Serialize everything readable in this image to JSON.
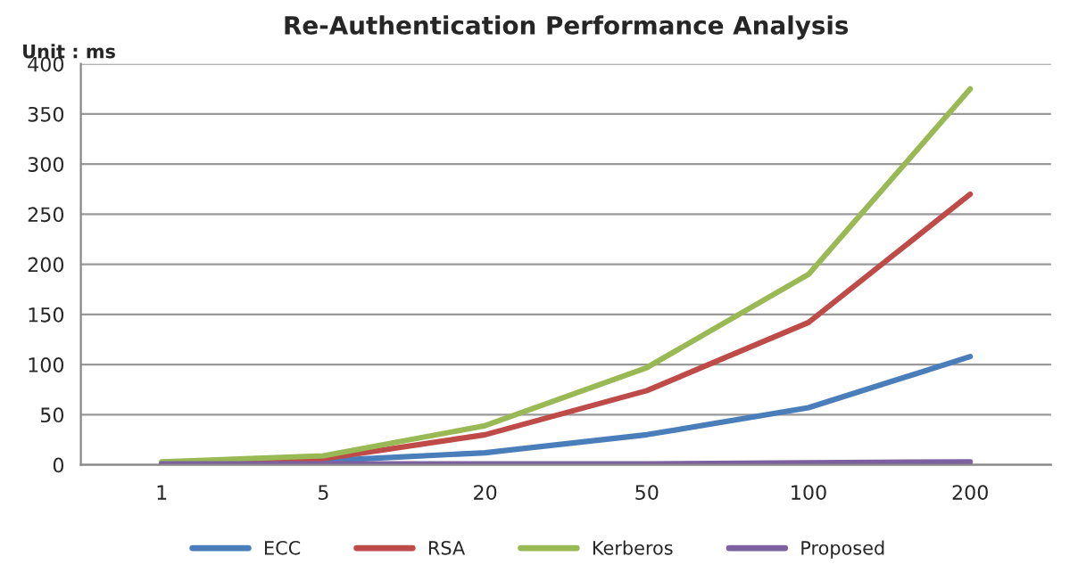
{
  "chart_data": {
    "type": "line",
    "title": "Re-Authentication Performance Analysis",
    "annotations": [
      "Unit : ms"
    ],
    "categories": [
      "1",
      "5",
      "20",
      "50",
      "100",
      "200"
    ],
    "series": [
      {
        "name": "ECC",
        "color": "#4a7ebb",
        "values": [
          2,
          4,
          12,
          30,
          57,
          108
        ]
      },
      {
        "name": "RSA",
        "color": "#be4b48",
        "values": [
          2,
          6,
          30,
          74,
          142,
          270
        ]
      },
      {
        "name": "Kerberos",
        "color": "#98b954",
        "values": [
          3,
          9,
          39,
          97,
          190,
          375
        ]
      },
      {
        "name": "Proposed",
        "color": "#7d60a0",
        "values": [
          1,
          1,
          1,
          1,
          2,
          3
        ]
      }
    ],
    "ylim": [
      0,
      400
    ],
    "yticks": [
      0,
      50,
      100,
      150,
      200,
      250,
      300,
      350,
      400
    ],
    "grid": "y",
    "legend": "bottom",
    "marker": "none",
    "line_style": "solid"
  }
}
